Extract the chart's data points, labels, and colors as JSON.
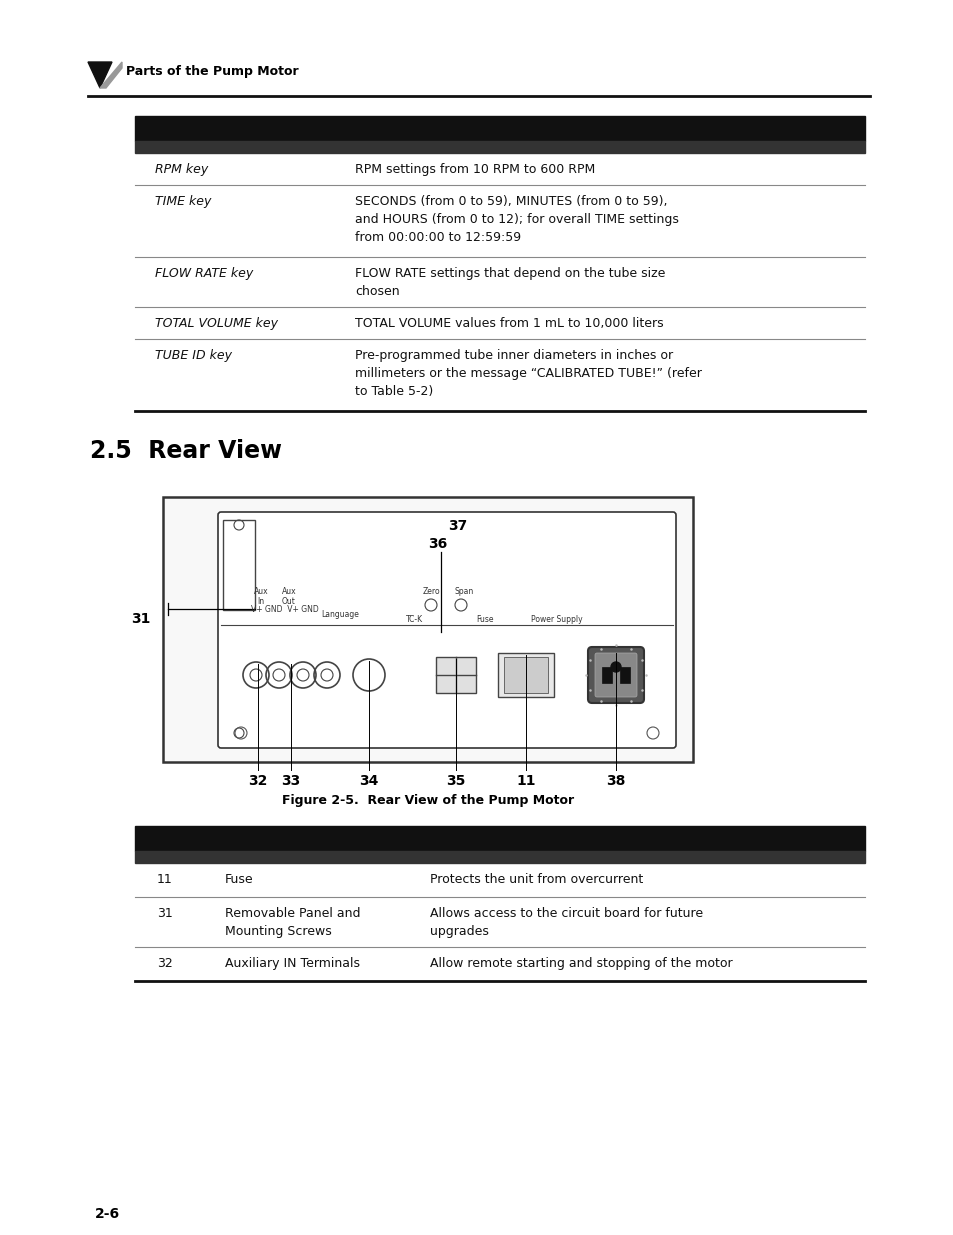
{
  "page_bg": "#ffffff",
  "header_label": "Parts of the Pump Motor",
  "table1_rows": [
    {
      "col1": "RPM key",
      "col2": "RPM settings from 10 RPM to 600 RPM"
    },
    {
      "col1": "TIME key",
      "col2": "SECONDS (from 0 to 59), MINUTES (from 0 to 59),\nand HOURS (from 0 to 12); for overall TIME settings\nfrom 00:00:00 to 12:59:59"
    },
    {
      "col1": "FLOW RATE key",
      "col2": "FLOW RATE settings that depend on the tube size\nchosen"
    },
    {
      "col1": "TOTAL VOLUME key",
      "col2": "TOTAL VOLUME values from 1 mL to 10,000 liters"
    },
    {
      "col1": "TUBE ID key",
      "col2": "Pre-programmed tube inner diameters in inches or\nmillimeters or the message “CALIBRATED TUBE!” (refer\nto Table 5-2)"
    }
  ],
  "section_title": "2.5  Rear View",
  "figure_caption": "Figure 2-5.  Rear View of the Pump Motor",
  "table2_rows": [
    {
      "num": "11",
      "col1": "Fuse",
      "col2": "Protects the unit from overcurrent"
    },
    {
      "num": "31",
      "col1": "Removable Panel and\nMounting Screws",
      "col2": "Allows access to the circuit board for future\nupgrades"
    },
    {
      "num": "32",
      "col1": "Auxiliary IN Terminals",
      "col2": "Allow remote starting and stopping of the motor"
    }
  ],
  "page_number": "2-6"
}
